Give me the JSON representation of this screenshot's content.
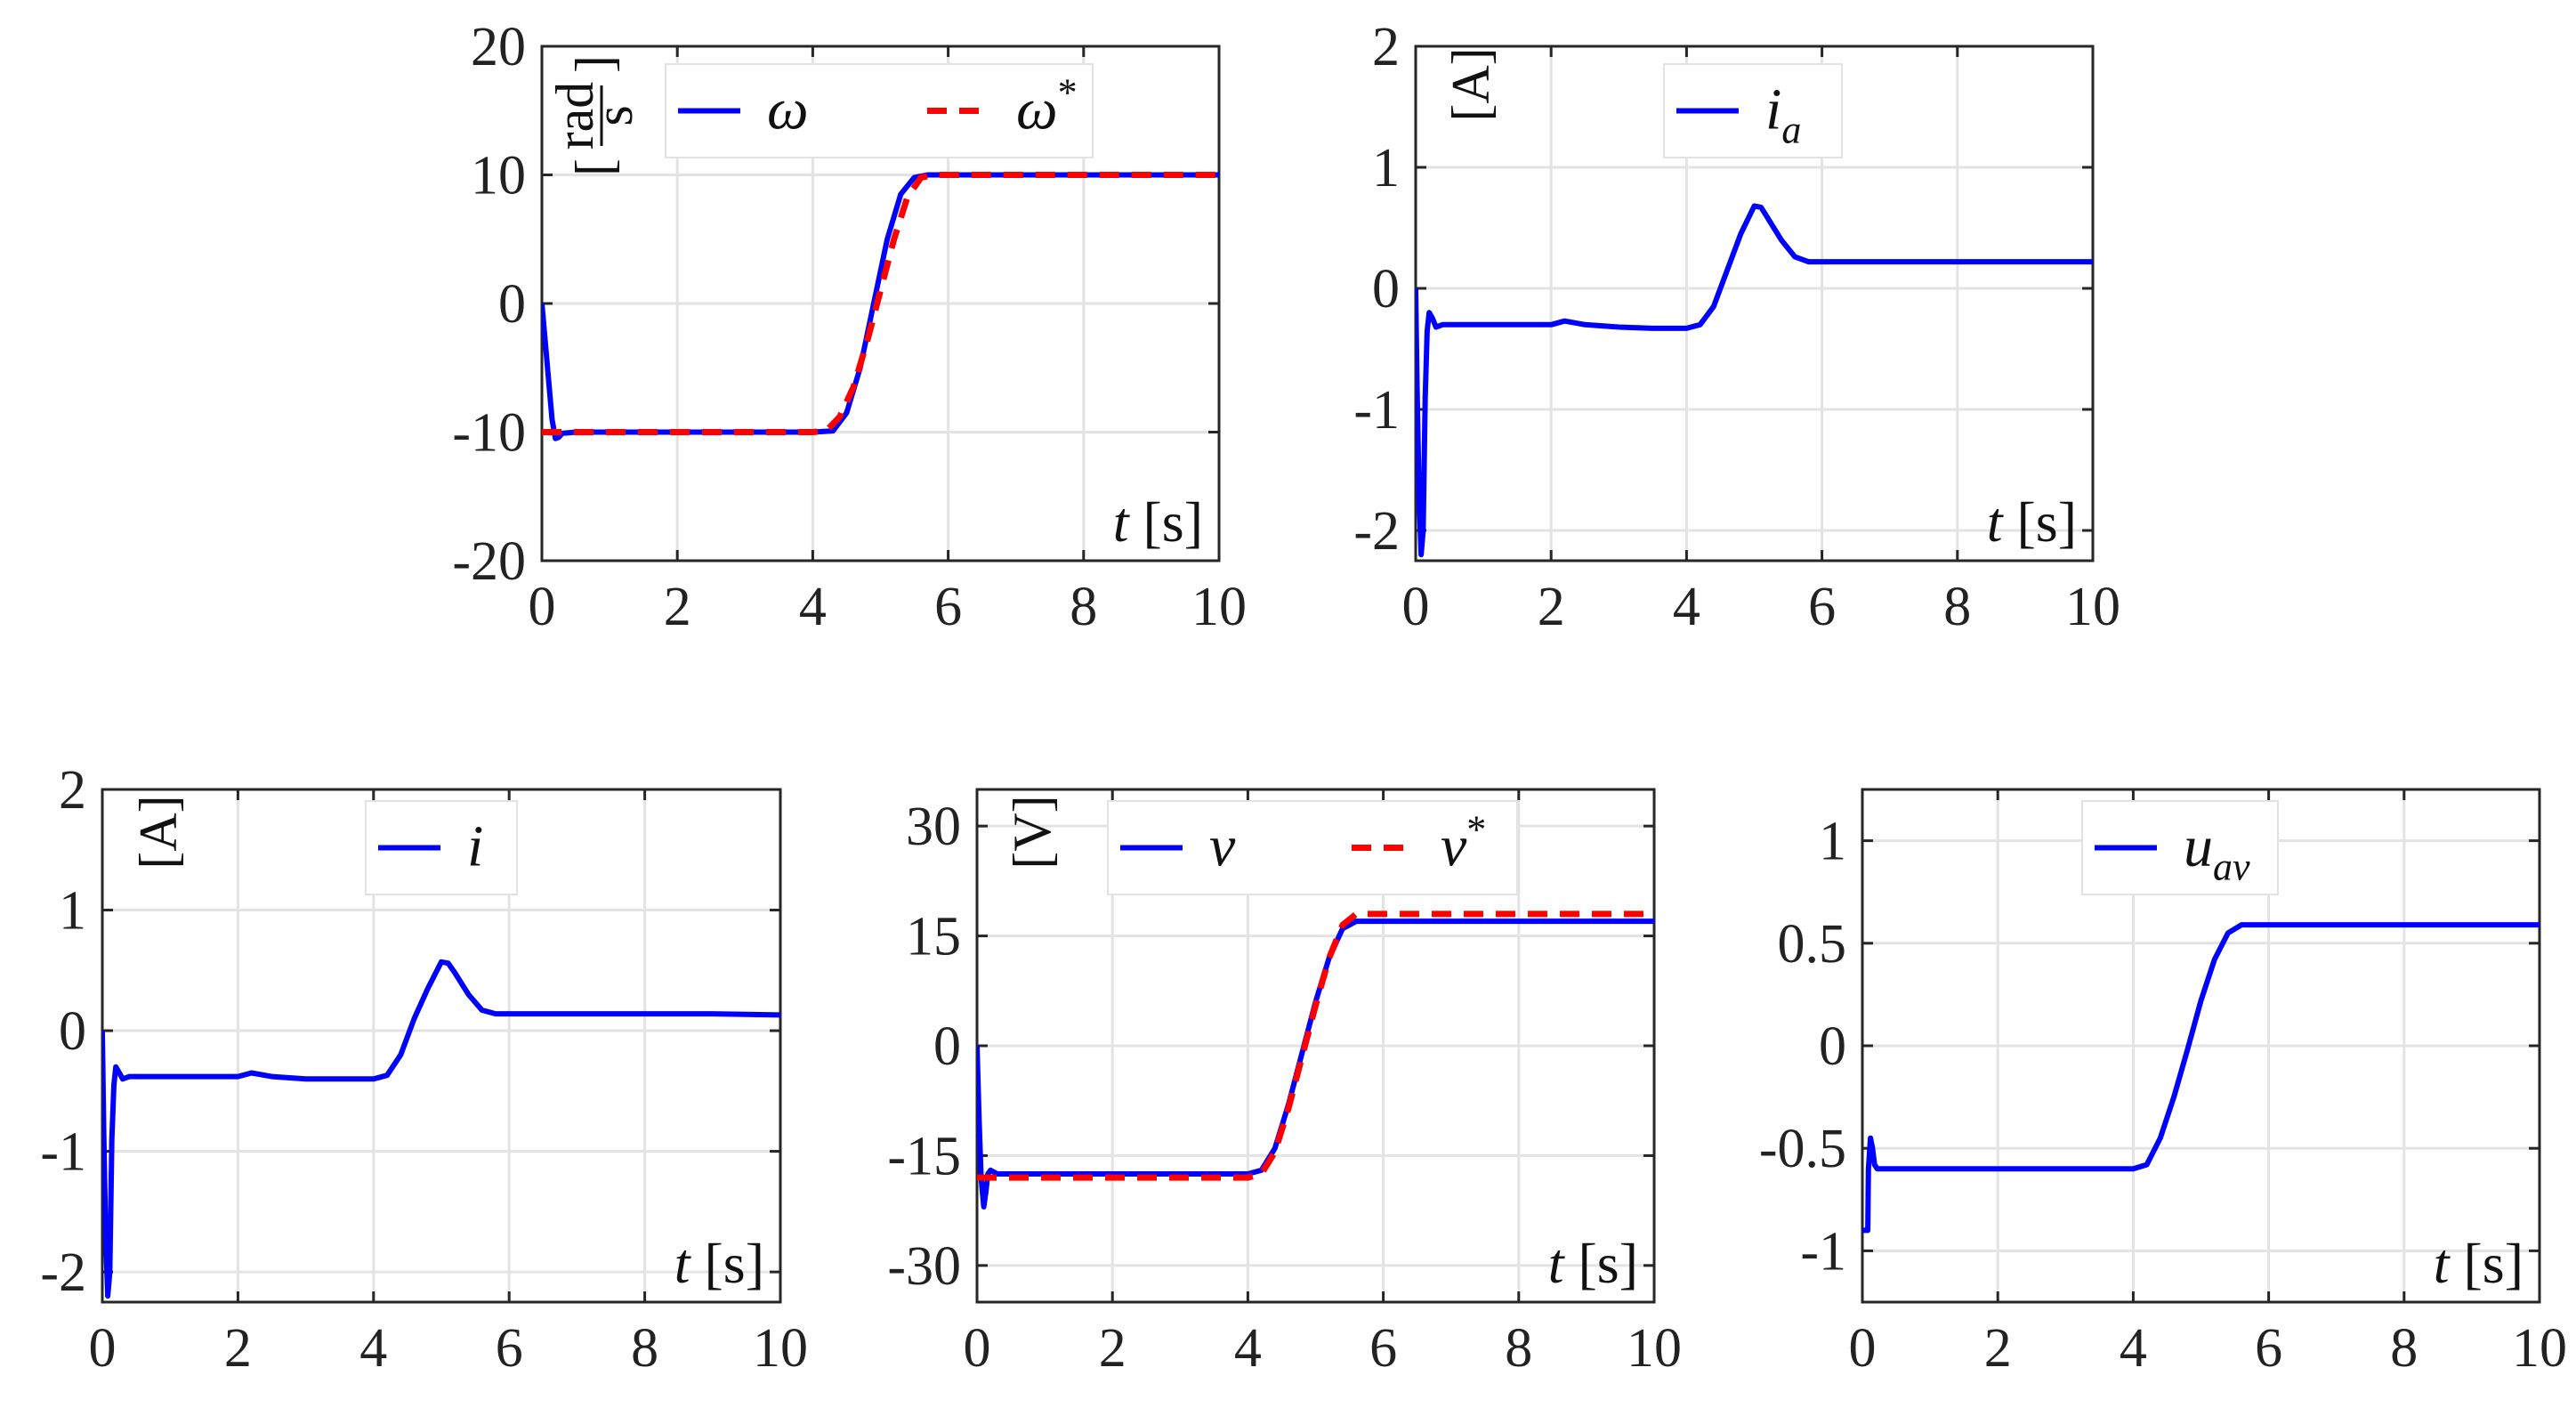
{
  "chart_data": [
    {
      "type": "line",
      "xlabel": "t [s]",
      "ylabel": "rad/s",
      "xlim": [
        0,
        10
      ],
      "ylim": [
        -20,
        20
      ],
      "xticks": [
        0,
        2,
        4,
        6,
        8,
        10
      ],
      "xtick_labels": [
        "0",
        "2",
        "4",
        "6",
        "8",
        "10"
      ],
      "yticks": [
        -20,
        -10,
        0,
        10,
        20
      ],
      "ytick_labels": [
        "-20",
        "-10",
        "0",
        "10",
        "20"
      ],
      "grid": true,
      "legend_position": "top",
      "series": [
        {
          "name": "ω",
          "color": "#0000ff",
          "style": "solid",
          "x": [
            0,
            0.05,
            0.1,
            0.15,
            0.2,
            0.25,
            0.3,
            0.5,
            1,
            2,
            3,
            4,
            4.3,
            4.5,
            4.7,
            4.9,
            5.1,
            5.3,
            5.5,
            5.7,
            6,
            7,
            8,
            9,
            10
          ],
          "y": [
            0,
            -3,
            -6,
            -9,
            -10.5,
            -10.4,
            -10.1,
            -10,
            -10,
            -10,
            -10,
            -10,
            -9.9,
            -8.5,
            -5,
            0,
            5,
            8.5,
            9.8,
            10,
            10,
            10,
            10,
            10,
            10
          ]
        },
        {
          "name": "ω*",
          "color": "#ff0000",
          "style": "dashed",
          "x": [
            0,
            1,
            2,
            3,
            4,
            4.2,
            4.4,
            4.6,
            4.8,
            5,
            5.2,
            5.4,
            5.6,
            5.8,
            6,
            7,
            8,
            9,
            10
          ],
          "y": [
            -10,
            -10,
            -10,
            -10,
            -10,
            -9.9,
            -8.8,
            -6.5,
            -3,
            1,
            5,
            8.3,
            9.8,
            10,
            10,
            10,
            10,
            10,
            10
          ]
        }
      ]
    },
    {
      "type": "line",
      "xlabel": "t [s]",
      "ylabel": "A",
      "xlim": [
        0,
        10
      ],
      "ylim": [
        -2.25,
        2
      ],
      "xticks": [
        0,
        2,
        4,
        6,
        8,
        10
      ],
      "xtick_labels": [
        "0",
        "2",
        "4",
        "6",
        "8",
        "10"
      ],
      "yticks": [
        -2,
        -1,
        0,
        1,
        2
      ],
      "ytick_labels": [
        "-2",
        "-1",
        "0",
        "1",
        "2"
      ],
      "grid": true,
      "legend_position": "top",
      "series": [
        {
          "name": "i_a",
          "color": "#0000ff",
          "style": "solid",
          "x": [
            0,
            0.02,
            0.05,
            0.08,
            0.11,
            0.14,
            0.17,
            0.2,
            0.25,
            0.3,
            0.4,
            0.6,
            1,
            1.5,
            2,
            2.2,
            2.5,
            3,
            3.5,
            4,
            4.2,
            4.4,
            4.6,
            4.8,
            5,
            5.1,
            5.2,
            5.4,
            5.6,
            5.8,
            6,
            7,
            8,
            9,
            10
          ],
          "y": [
            0,
            -0.8,
            -1.7,
            -2.2,
            -2.0,
            -0.9,
            -0.35,
            -0.2,
            -0.25,
            -0.32,
            -0.3,
            -0.3,
            -0.3,
            -0.3,
            -0.3,
            -0.27,
            -0.3,
            -0.32,
            -0.33,
            -0.33,
            -0.3,
            -0.15,
            0.15,
            0.45,
            0.68,
            0.67,
            0.58,
            0.4,
            0.26,
            0.22,
            0.22,
            0.22,
            0.22,
            0.22,
            0.22
          ]
        }
      ]
    },
    {
      "type": "line",
      "xlabel": "t [s]",
      "ylabel": "A",
      "xlim": [
        0,
        10
      ],
      "ylim": [
        -2.25,
        2
      ],
      "xticks": [
        0,
        2,
        4,
        6,
        8,
        10
      ],
      "xtick_labels": [
        "0",
        "2",
        "4",
        "6",
        "8",
        "10"
      ],
      "yticks": [
        -2,
        -1,
        0,
        1,
        2
      ],
      "ytick_labels": [
        "-2",
        "-1",
        "0",
        "1",
        "2"
      ],
      "grid": true,
      "legend_position": "top",
      "series": [
        {
          "name": "i",
          "color": "#0000ff",
          "style": "solid",
          "x": [
            0,
            0.02,
            0.05,
            0.08,
            0.11,
            0.14,
            0.17,
            0.2,
            0.25,
            0.3,
            0.4,
            0.6,
            1,
            1.5,
            2,
            2.2,
            2.5,
            3,
            3.5,
            4,
            4.2,
            4.4,
            4.6,
            4.8,
            5,
            5.1,
            5.2,
            5.4,
            5.6,
            5.8,
            6,
            7,
            8,
            9,
            10
          ],
          "y": [
            0,
            -0.8,
            -1.7,
            -2.2,
            -2.0,
            -0.9,
            -0.45,
            -0.3,
            -0.35,
            -0.4,
            -0.38,
            -0.38,
            -0.38,
            -0.38,
            -0.38,
            -0.35,
            -0.38,
            -0.4,
            -0.4,
            -0.4,
            -0.37,
            -0.2,
            0.1,
            0.35,
            0.57,
            0.56,
            0.48,
            0.3,
            0.17,
            0.14,
            0.14,
            0.14,
            0.14,
            0.14,
            0.13
          ]
        }
      ]
    },
    {
      "type": "line",
      "xlabel": "t [s]",
      "ylabel": "V",
      "xlim": [
        0,
        10
      ],
      "ylim": [
        -35,
        35
      ],
      "xticks": [
        0,
        2,
        4,
        6,
        8,
        10
      ],
      "xtick_labels": [
        "0",
        "2",
        "4",
        "6",
        "8",
        "10"
      ],
      "yticks": [
        -30,
        -15,
        0,
        15,
        30
      ],
      "ytick_labels": [
        "-30",
        "-15",
        "0",
        "15",
        "30"
      ],
      "grid": true,
      "legend_position": "top",
      "series": [
        {
          "name": "v",
          "color": "#0000ff",
          "style": "solid",
          "x": [
            0,
            0.03,
            0.06,
            0.1,
            0.13,
            0.16,
            0.2,
            0.3,
            0.5,
            1,
            2,
            3,
            4,
            4.2,
            4.4,
            4.6,
            4.8,
            5,
            5.2,
            5.4,
            5.6,
            5.8,
            6,
            7,
            8,
            9,
            10
          ],
          "y": [
            0,
            -10,
            -18,
            -22,
            -20,
            -17.5,
            -17,
            -17.5,
            -17.5,
            -17.5,
            -17.5,
            -17.5,
            -17.5,
            -17,
            -14,
            -8,
            -1,
            6,
            12,
            16,
            17,
            17,
            17,
            17,
            17,
            17,
            17
          ]
        },
        {
          "name": "v*",
          "color": "#ff0000",
          "style": "dashed",
          "x": [
            0,
            0.2,
            0.5,
            1,
            2,
            3,
            4,
            4.2,
            4.4,
            4.6,
            4.8,
            5,
            5.2,
            5.4,
            5.6,
            5.8,
            6,
            7,
            8,
            9,
            10
          ],
          "y": [
            -18,
            -18,
            -18,
            -18,
            -18,
            -18,
            -18,
            -17.5,
            -14.5,
            -8.5,
            -1.5,
            5.5,
            12,
            16.5,
            18,
            18,
            18,
            18,
            18,
            18,
            18
          ]
        }
      ]
    },
    {
      "type": "line",
      "xlabel": "t [s]",
      "ylabel": "",
      "xlim": [
        0,
        10
      ],
      "ylim": [
        -1.25,
        1.25
      ],
      "xticks": [
        0,
        2,
        4,
        6,
        8,
        10
      ],
      "xtick_labels": [
        "0",
        "2",
        "4",
        "6",
        "8",
        "10"
      ],
      "yticks": [
        -1,
        -0.5,
        0,
        0.5,
        1
      ],
      "ytick_labels": [
        "-1",
        "-0.5",
        "0",
        "0.5",
        "1"
      ],
      "grid": true,
      "legend_position": "top",
      "series": [
        {
          "name": "u_av",
          "color": "#0000ff",
          "style": "solid",
          "x": [
            0,
            0.08,
            0.09,
            0.12,
            0.15,
            0.18,
            0.22,
            0.3,
            0.5,
            1,
            2,
            3,
            4,
            4.2,
            4.4,
            4.6,
            4.8,
            5,
            5.2,
            5.4,
            5.6,
            6,
            7,
            8,
            9,
            10
          ],
          "y": [
            -0.9,
            -0.9,
            -0.6,
            -0.45,
            -0.5,
            -0.58,
            -0.6,
            -0.6,
            -0.6,
            -0.6,
            -0.6,
            -0.6,
            -0.6,
            -0.58,
            -0.45,
            -0.25,
            -0.02,
            0.22,
            0.42,
            0.55,
            0.59,
            0.59,
            0.59,
            0.59,
            0.59,
            0.59
          ]
        }
      ]
    }
  ],
  "panels": [
    {
      "x_title_var": "t",
      "x_title_unit": "[s]",
      "unit_label": "rad/s",
      "unit_num": "rad",
      "unit_den": "s",
      "legend": [
        {
          "symbol": "ω",
          "sup": "",
          "sub": "",
          "color": "#0000ff",
          "dashed": false
        },
        {
          "symbol": "ω",
          "sup": "*",
          "sub": "",
          "color": "#ff0000",
          "dashed": true
        }
      ]
    },
    {
      "x_title_var": "t",
      "x_title_unit": "[s]",
      "unit_label": "[A]",
      "legend": [
        {
          "symbol": "i",
          "sup": "",
          "sub": "a",
          "color": "#0000ff",
          "dashed": false
        }
      ]
    },
    {
      "x_title_var": "t",
      "x_title_unit": "[s]",
      "unit_label": "[A]",
      "legend": [
        {
          "symbol": "i",
          "sup": "",
          "sub": "",
          "color": "#0000ff",
          "dashed": false
        }
      ]
    },
    {
      "x_title_var": "t",
      "x_title_unit": "[s]",
      "unit_label": "[V]",
      "legend": [
        {
          "symbol": "v",
          "sup": "",
          "sub": "",
          "color": "#0000ff",
          "dashed": false
        },
        {
          "symbol": "v",
          "sup": "*",
          "sub": "",
          "color": "#ff0000",
          "dashed": true
        }
      ]
    },
    {
      "x_title_var": "t",
      "x_title_unit": "[s]",
      "unit_label": "",
      "legend": [
        {
          "symbol": "u",
          "sup": "",
          "sub": "av",
          "color": "#0000ff",
          "dashed": false
        }
      ]
    }
  ]
}
